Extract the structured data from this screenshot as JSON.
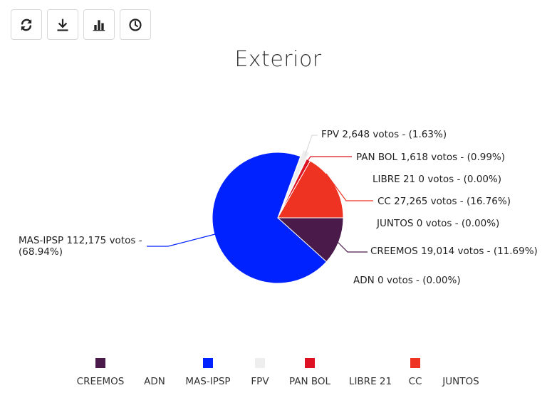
{
  "toolbar": {
    "buttons": [
      {
        "name": "refresh-icon"
      },
      {
        "name": "download-icon"
      },
      {
        "name": "bar-chart-icon"
      },
      {
        "name": "clock-icon"
      }
    ]
  },
  "chart_data": {
    "type": "pie",
    "title": "Exterior",
    "slices": [
      {
        "name": "CREEMOS",
        "votes": "19,014",
        "percent": 11.69,
        "percent_label": "(11.69%)",
        "color": "#4a1a4a",
        "label": "CREEMOS 19,014 votos - (11.69%)"
      },
      {
        "name": "ADN",
        "votes": "0",
        "percent": 0.0,
        "percent_label": "(0.00%)",
        "color": "#bbbbbb",
        "label": "ADN 0 votos - (0.00%)"
      },
      {
        "name": "MAS-IPSP",
        "votes": "112,175",
        "percent": 68.94,
        "percent_label": "(68.94%)",
        "color": "#0022ff",
        "label": "MAS-IPSP 112,175 votos -",
        "label_line2": "(68.94%)"
      },
      {
        "name": "FPV",
        "votes": "2,648",
        "percent": 1.63,
        "percent_label": "(1.63%)",
        "color": "#eeeeee",
        "label": "FPV 2,648 votos - (1.63%)"
      },
      {
        "name": "PAN BOL",
        "votes": "1,618",
        "percent": 0.99,
        "percent_label": "(0.99%)",
        "color": "#dd1122",
        "label": "PAN BOL 1,618 votos - (0.99%)"
      },
      {
        "name": "LIBRE 21",
        "votes": "0",
        "percent": 0.0,
        "percent_label": "(0.00%)",
        "color": "#bbbbbb",
        "label": "LIBRE 21 0 votos - (0.00%)"
      },
      {
        "name": "CC",
        "votes": "27,265",
        "percent": 16.76,
        "percent_label": "(16.76%)",
        "color": "#ee3322",
        "label": "CC 27,265 votos - (16.76%)"
      },
      {
        "name": "JUNTOS",
        "votes": "0",
        "percent": 0.0,
        "percent_label": "(0.00%)",
        "color": "#bbbbbb",
        "label": "JUNTOS 0 votos - (0.00%)"
      }
    ],
    "legend": [
      {
        "name": "CREEMOS",
        "color": "#4a1a4a",
        "swatch": true
      },
      {
        "name": "ADN",
        "color": "",
        "swatch": false
      },
      {
        "name": "MAS-IPSP",
        "color": "#0022ff",
        "swatch": true
      },
      {
        "name": "FPV",
        "color": "#eeeeee",
        "swatch": true
      },
      {
        "name": "PAN BOL",
        "color": "#dd1122",
        "swatch": true
      },
      {
        "name": "LIBRE 21",
        "color": "",
        "swatch": false
      },
      {
        "name": "CC",
        "color": "#ee3322",
        "swatch": true
      },
      {
        "name": "JUNTOS",
        "color": "",
        "swatch": false
      }
    ],
    "legend_position": "bottom"
  }
}
